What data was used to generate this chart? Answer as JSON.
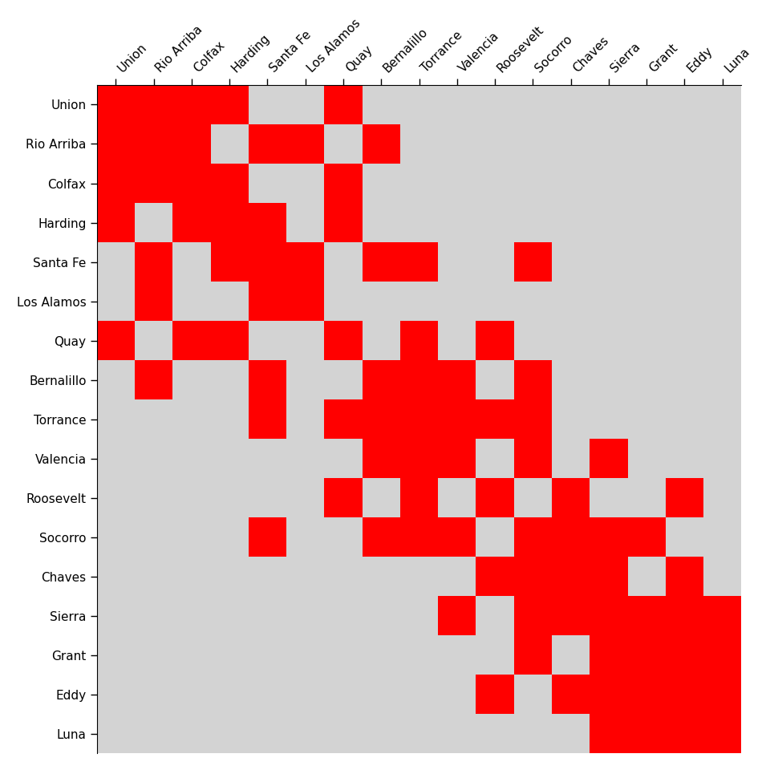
{
  "counties": [
    "Union",
    "Rio Arriba",
    "Colfax",
    "Harding",
    "Santa Fe",
    "Los Alamos",
    "Quay",
    "Bernalillo",
    "Torrance",
    "Valencia",
    "Roosevelt",
    "Socorro",
    "Chaves",
    "Sierra",
    "Grant",
    "Eddy",
    "Luna"
  ],
  "background_color": "#d3d3d3",
  "red_color": "#ff0000",
  "adjacency": [
    [
      1,
      1,
      1,
      1,
      0,
      0,
      1,
      0,
      0,
      0,
      0,
      0,
      0,
      0,
      0,
      0,
      0
    ],
    [
      1,
      1,
      1,
      0,
      1,
      1,
      0,
      1,
      0,
      0,
      0,
      0,
      0,
      0,
      0,
      0,
      0
    ],
    [
      1,
      1,
      1,
      1,
      0,
      0,
      1,
      0,
      0,
      0,
      0,
      0,
      0,
      0,
      0,
      0,
      0
    ],
    [
      1,
      0,
      1,
      1,
      1,
      0,
      1,
      0,
      0,
      0,
      0,
      0,
      0,
      0,
      0,
      0,
      0
    ],
    [
      0,
      1,
      0,
      1,
      1,
      1,
      0,
      1,
      1,
      0,
      0,
      1,
      0,
      0,
      0,
      0,
      0
    ],
    [
      0,
      1,
      0,
      0,
      1,
      1,
      0,
      0,
      0,
      0,
      0,
      0,
      0,
      0,
      0,
      0,
      0
    ],
    [
      1,
      0,
      1,
      1,
      0,
      0,
      1,
      0,
      1,
      0,
      1,
      0,
      0,
      0,
      0,
      0,
      0
    ],
    [
      0,
      1,
      0,
      0,
      1,
      0,
      0,
      1,
      1,
      1,
      0,
      1,
      0,
      0,
      0,
      0,
      0
    ],
    [
      0,
      0,
      0,
      0,
      1,
      0,
      1,
      1,
      1,
      1,
      1,
      1,
      0,
      0,
      0,
      0,
      0
    ],
    [
      0,
      0,
      0,
      0,
      0,
      0,
      0,
      1,
      1,
      1,
      0,
      1,
      0,
      1,
      0,
      0,
      0
    ],
    [
      0,
      0,
      0,
      0,
      0,
      0,
      1,
      0,
      1,
      0,
      1,
      0,
      1,
      0,
      0,
      1,
      0
    ],
    [
      0,
      0,
      0,
      0,
      1,
      0,
      0,
      1,
      1,
      1,
      0,
      1,
      1,
      1,
      1,
      0,
      0
    ],
    [
      0,
      0,
      0,
      0,
      0,
      0,
      0,
      0,
      0,
      0,
      1,
      1,
      1,
      1,
      0,
      1,
      0
    ],
    [
      0,
      0,
      0,
      0,
      0,
      0,
      0,
      0,
      0,
      1,
      0,
      1,
      1,
      1,
      1,
      1,
      1
    ],
    [
      0,
      0,
      0,
      0,
      0,
      0,
      0,
      0,
      0,
      0,
      0,
      1,
      0,
      1,
      1,
      1,
      1
    ],
    [
      0,
      0,
      0,
      0,
      0,
      0,
      0,
      0,
      0,
      0,
      1,
      0,
      1,
      1,
      1,
      1,
      1
    ],
    [
      0,
      0,
      0,
      0,
      0,
      0,
      0,
      0,
      0,
      0,
      0,
      0,
      0,
      1,
      1,
      1,
      1
    ]
  ]
}
